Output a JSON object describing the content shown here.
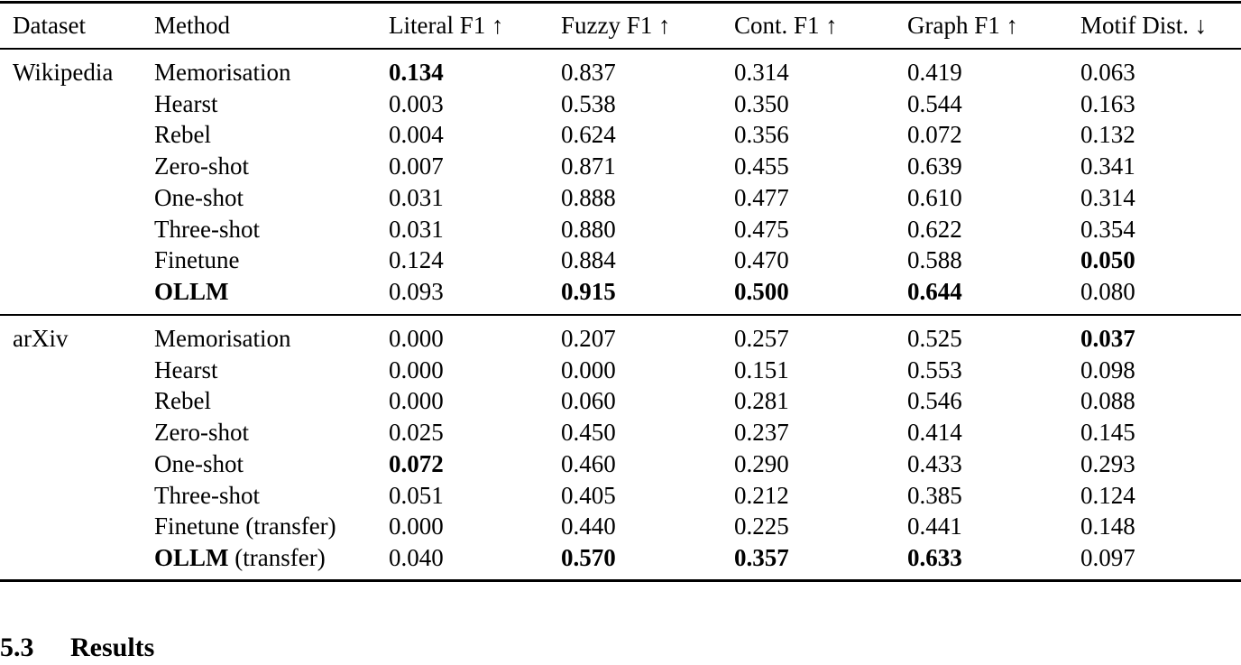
{
  "table": {
    "headers": [
      "Dataset",
      "Method",
      "Literal F1 ↑",
      "Fuzzy F1 ↑",
      "Cont. F1 ↑",
      "Graph F1 ↑",
      "Motif Dist. ↓"
    ],
    "groups": [
      {
        "dataset": "Wikipedia",
        "rows": [
          {
            "method": "Memorisation",
            "method_bold": "",
            "method_suffix": "",
            "values": [
              "0.134",
              "0.837",
              "0.314",
              "0.419",
              "0.063"
            ],
            "bold": [
              true,
              false,
              false,
              false,
              false
            ]
          },
          {
            "method": "Hearst",
            "method_bold": "",
            "method_suffix": "",
            "values": [
              "0.003",
              "0.538",
              "0.350",
              "0.544",
              "0.163"
            ],
            "bold": [
              false,
              false,
              false,
              false,
              false
            ]
          },
          {
            "method": "Rebel",
            "method_bold": "",
            "method_suffix": "",
            "values": [
              "0.004",
              "0.624",
              "0.356",
              "0.072",
              "0.132"
            ],
            "bold": [
              false,
              false,
              false,
              false,
              false
            ]
          },
          {
            "method": "Zero-shot",
            "method_bold": "",
            "method_suffix": "",
            "values": [
              "0.007",
              "0.871",
              "0.455",
              "0.639",
              "0.341"
            ],
            "bold": [
              false,
              false,
              false,
              false,
              false
            ]
          },
          {
            "method": "One-shot",
            "method_bold": "",
            "method_suffix": "",
            "values": [
              "0.031",
              "0.888",
              "0.477",
              "0.610",
              "0.314"
            ],
            "bold": [
              false,
              false,
              false,
              false,
              false
            ]
          },
          {
            "method": "Three-shot",
            "method_bold": "",
            "method_suffix": "",
            "values": [
              "0.031",
              "0.880",
              "0.475",
              "0.622",
              "0.354"
            ],
            "bold": [
              false,
              false,
              false,
              false,
              false
            ]
          },
          {
            "method": "Finetune",
            "method_bold": "",
            "method_suffix": "",
            "values": [
              "0.124",
              "0.884",
              "0.470",
              "0.588",
              "0.050"
            ],
            "bold": [
              false,
              false,
              false,
              false,
              true
            ]
          },
          {
            "method": "",
            "method_bold": "OLLM",
            "method_suffix": "",
            "values": [
              "0.093",
              "0.915",
              "0.500",
              "0.644",
              "0.080"
            ],
            "bold": [
              false,
              true,
              true,
              true,
              false
            ]
          }
        ]
      },
      {
        "dataset": "arXiv",
        "rows": [
          {
            "method": "Memorisation",
            "method_bold": "",
            "method_suffix": "",
            "values": [
              "0.000",
              "0.207",
              "0.257",
              "0.525",
              "0.037"
            ],
            "bold": [
              false,
              false,
              false,
              false,
              true
            ]
          },
          {
            "method": "Hearst",
            "method_bold": "",
            "method_suffix": "",
            "values": [
              "0.000",
              "0.000",
              "0.151",
              "0.553",
              "0.098"
            ],
            "bold": [
              false,
              false,
              false,
              false,
              false
            ]
          },
          {
            "method": "Rebel",
            "method_bold": "",
            "method_suffix": "",
            "values": [
              "0.000",
              "0.060",
              "0.281",
              "0.546",
              "0.088"
            ],
            "bold": [
              false,
              false,
              false,
              false,
              false
            ]
          },
          {
            "method": "Zero-shot",
            "method_bold": "",
            "method_suffix": "",
            "values": [
              "0.025",
              "0.450",
              "0.237",
              "0.414",
              "0.145"
            ],
            "bold": [
              false,
              false,
              false,
              false,
              false
            ]
          },
          {
            "method": "One-shot",
            "method_bold": "",
            "method_suffix": "",
            "values": [
              "0.072",
              "0.460",
              "0.290",
              "0.433",
              "0.293"
            ],
            "bold": [
              true,
              false,
              false,
              false,
              false
            ]
          },
          {
            "method": "Three-shot",
            "method_bold": "",
            "method_suffix": "",
            "values": [
              "0.051",
              "0.405",
              "0.212",
              "0.385",
              "0.124"
            ],
            "bold": [
              false,
              false,
              false,
              false,
              false
            ]
          },
          {
            "method": "Finetune (transfer)",
            "method_bold": "",
            "method_suffix": "",
            "values": [
              "0.000",
              "0.440",
              "0.225",
              "0.441",
              "0.148"
            ],
            "bold": [
              false,
              false,
              false,
              false,
              false
            ]
          },
          {
            "method": "",
            "method_bold": "OLLM",
            "method_suffix": " (transfer)",
            "values": [
              "0.040",
              "0.570",
              "0.357",
              "0.633",
              "0.097"
            ],
            "bold": [
              false,
              true,
              true,
              true,
              false
            ]
          }
        ]
      }
    ]
  },
  "section": {
    "number": "5.3",
    "title": "Results"
  }
}
